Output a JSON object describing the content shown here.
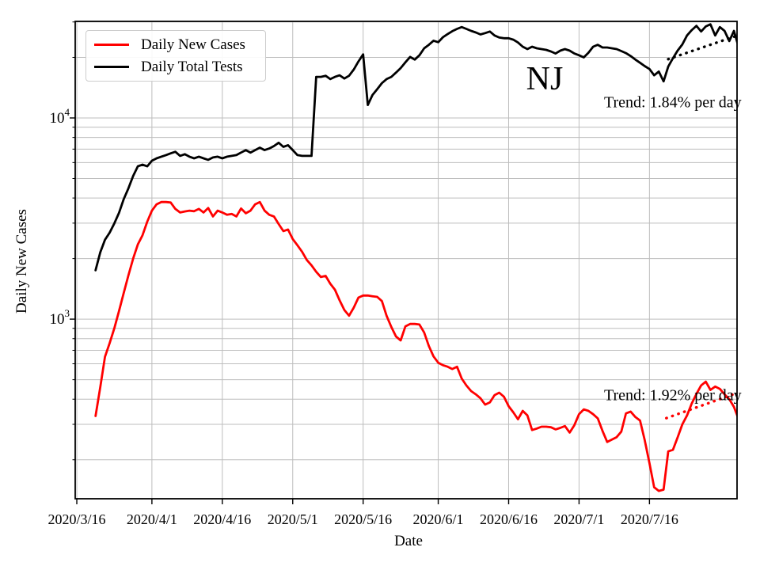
{
  "axes": {
    "xlabel": "Date",
    "ylabel": "Daily New Cases"
  },
  "annotations": {
    "state_label": "NJ",
    "trend_tests": "Trend: 1.84% per day",
    "trend_cases": "Trend: 1.92% per day"
  },
  "legend": {
    "items": [
      {
        "label": "Daily New Cases",
        "color": "#ff0000"
      },
      {
        "label": "Daily Total Tests",
        "color": "#000000"
      }
    ]
  },
  "colors": {
    "cases": "#ff0000",
    "tests": "#000000",
    "grid": "#bdbdbd",
    "frame": "#000000"
  },
  "chart_data": {
    "type": "line",
    "title": "",
    "xlabel": "Date",
    "ylabel": "Daily New Cases",
    "yscale": "log",
    "grid": true,
    "legend_position": "upper left",
    "x_axis_origin_date": "2020/3/16",
    "data_start_date": "2020/3/20",
    "data_start_day": 4,
    "xlim_days": [
      -0.34,
      140.66
    ],
    "ylim": [
      128,
      30200
    ],
    "xticks": [
      {
        "day": 0,
        "label": "2020/3/16"
      },
      {
        "day": 16,
        "label": "2020/4/1"
      },
      {
        "day": 31,
        "label": "2020/4/16"
      },
      {
        "day": 46,
        "label": "2020/5/1"
      },
      {
        "day": 61,
        "label": "2020/5/16"
      },
      {
        "day": 77,
        "label": "2020/6/1"
      },
      {
        "day": 92,
        "label": "2020/6/16"
      },
      {
        "day": 107,
        "label": "2020/7/1"
      },
      {
        "day": 122,
        "label": "2020/7/16"
      }
    ],
    "yticks": [
      {
        "value": 1000,
        "base": "10",
        "exp": "3"
      },
      {
        "value": 10000,
        "base": "10",
        "exp": "4"
      }
    ],
    "series": [
      {
        "name": "Daily New Cases",
        "color": "#ff0000",
        "start_day": 4,
        "values": [
          330,
          460,
          650,
          760,
          900,
          1100,
          1350,
          1650,
          2000,
          2350,
          2610,
          3050,
          3460,
          3720,
          3820,
          3820,
          3800,
          3530,
          3390,
          3430,
          3460,
          3440,
          3530,
          3390,
          3570,
          3240,
          3460,
          3390,
          3300,
          3330,
          3240,
          3550,
          3360,
          3460,
          3720,
          3820,
          3460,
          3300,
          3240,
          2970,
          2740,
          2790,
          2500,
          2330,
          2160,
          1970,
          1850,
          1720,
          1620,
          1640,
          1500,
          1400,
          1240,
          1110,
          1040,
          1140,
          1280,
          1310,
          1310,
          1300,
          1290,
          1230,
          1040,
          914,
          820,
          784,
          921,
          946,
          946,
          940,
          857,
          735,
          653,
          607,
          590,
          580,
          565,
          580,
          507,
          468,
          439,
          423,
          404,
          376,
          386,
          419,
          431,
          411,
          369,
          344,
          318,
          350,
          332,
          281,
          286,
          292,
          292,
          290,
          283,
          288,
          294,
          273,
          297,
          337,
          356,
          350,
          337,
          321,
          278,
          245,
          252,
          259,
          276,
          340,
          347,
          326,
          313,
          250,
          192,
          146,
          140,
          142,
          220,
          224,
          258,
          300,
          332,
          380,
          425,
          468,
          489,
          445,
          462,
          450,
          423,
          400,
          366,
          318
        ]
      },
      {
        "name": "Daily Total Tests",
        "color": "#000000",
        "start_day": 4,
        "values": [
          1750,
          2150,
          2480,
          2690,
          2990,
          3380,
          3950,
          4470,
          5150,
          5750,
          5860,
          5750,
          6130,
          6300,
          6420,
          6540,
          6670,
          6790,
          6480,
          6600,
          6420,
          6300,
          6420,
          6300,
          6190,
          6360,
          6420,
          6300,
          6420,
          6480,
          6540,
          6730,
          6920,
          6730,
          6920,
          7120,
          6920,
          7050,
          7250,
          7530,
          7180,
          7320,
          6920,
          6540,
          6480,
          6480,
          6480,
          16000,
          16000,
          16200,
          15600,
          16000,
          16300,
          15700,
          16200,
          17400,
          19100,
          20700,
          11600,
          13000,
          13900,
          14900,
          15600,
          16000,
          16800,
          17700,
          18900,
          20100,
          19500,
          20500,
          22200,
          23100,
          24200,
          23800,
          25200,
          26100,
          27000,
          27700,
          28300,
          27700,
          27100,
          26600,
          26000,
          26400,
          26900,
          25700,
          25100,
          24900,
          24900,
          24500,
          23700,
          22600,
          22000,
          22600,
          22200,
          22000,
          21800,
          21400,
          20900,
          21600,
          22000,
          21600,
          20900,
          20500,
          20000,
          21100,
          22600,
          23100,
          22400,
          22400,
          22200,
          22000,
          21500,
          21000,
          20300,
          19500,
          18800,
          18100,
          17500,
          16300,
          17000,
          15200,
          18000,
          19800,
          21600,
          23200,
          25700,
          27300,
          28700,
          26900,
          28500,
          29200,
          25700,
          28300,
          27100,
          24100,
          27100,
          22500
        ]
      }
    ],
    "trend_lines": [
      {
        "name": "tests-trend",
        "color": "#000000",
        "label": "Trend: 1.84% per day",
        "rate_pct_per_day": 1.84,
        "x1_day": 126,
        "v1": 19600,
        "x2_day": 141,
        "v2": 25800
      },
      {
        "name": "cases-trend",
        "color": "#ff0000",
        "label": "Trend: 1.92% per day",
        "rate_pct_per_day": 1.92,
        "x1_day": 125.6,
        "v1": 322,
        "x2_day": 140.5,
        "v2": 428
      }
    ]
  }
}
